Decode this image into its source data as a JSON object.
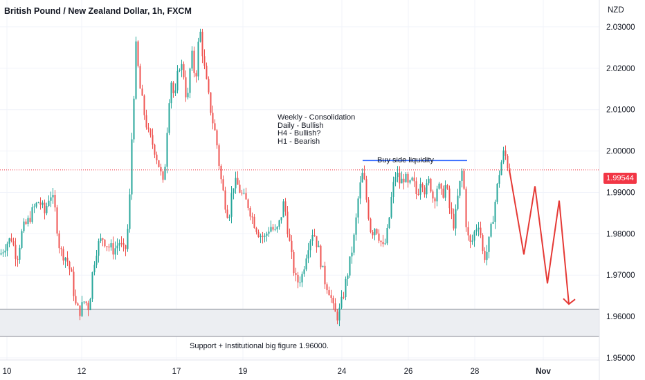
{
  "header": {
    "title": "British Pound / New Zealand Dollar, 1h, FXCM",
    "currency": "NZD"
  },
  "annotations": {
    "bias": [
      "Weekly - Consolidation",
      "Daily - Bullish",
      "H4 - Bullish?",
      "H1 - Bearish"
    ],
    "liquidity_label": "Buy side liquidity",
    "support_label": "Support + Institutional big figure 1.96000."
  },
  "colors": {
    "up": "#26a69a",
    "down": "#ef5350",
    "liquidity_line": "#2962ff",
    "projection": "#e53935",
    "last_price": "#f23645",
    "support_zone": "#eceef2"
  },
  "chart_data": {
    "type": "candlestick",
    "title": "British Pound / New Zealand Dollar, 1h, FXCM",
    "y_axis": {
      "unit": "NZD",
      "ylim": [
        1.9495,
        2.0365
      ],
      "ticks": [
        "2.03000",
        "2.02000",
        "2.01000",
        "2.00000",
        "1.99000",
        "1.98000",
        "1.97000",
        "1.96000",
        "1.95000"
      ],
      "position": "right"
    },
    "x_axis": {
      "ticks": [
        "10",
        "12",
        "17",
        "19",
        "24",
        "26",
        "28",
        "Nov"
      ]
    },
    "grid": true,
    "last_price": {
      "label": "1.99544",
      "value": 1.99544
    },
    "support_zone": {
      "from": 1.9552,
      "to": 1.9618,
      "label": "Support + Institutional big figure 1.96000."
    },
    "buy_side_liquidity": {
      "level": 1.9977,
      "label": "Buy side liquidity"
    },
    "price_path": [
      [
        0,
        1.975
      ],
      [
        8,
        1.9775
      ],
      [
        16,
        1.979
      ],
      [
        24,
        1.974
      ],
      [
        32,
        1.981
      ],
      [
        40,
        1.983
      ],
      [
        48,
        1.986
      ],
      [
        56,
        1.988
      ],
      [
        64,
        1.985
      ],
      [
        72,
        1.99
      ],
      [
        78,
        1.987
      ],
      [
        86,
        1.976
      ],
      [
        96,
        1.974
      ],
      [
        104,
        1.969
      ],
      [
        108,
        1.963
      ],
      [
        114,
        1.961
      ],
      [
        122,
        1.964
      ],
      [
        128,
        1.962
      ],
      [
        134,
        1.972
      ],
      [
        140,
        1.977
      ],
      [
        148,
        1.979
      ],
      [
        156,
        1.977
      ],
      [
        164,
        1.976
      ],
      [
        172,
        1.978
      ],
      [
        180,
        1.975
      ],
      [
        186,
        1.984
      ],
      [
        190,
        2.003
      ],
      [
        196,
        2.025
      ],
      [
        202,
        2.015
      ],
      [
        208,
        2.009
      ],
      [
        214,
        2.004
      ],
      [
        222,
        2.001
      ],
      [
        230,
        1.996
      ],
      [
        236,
        1.991
      ],
      [
        240,
        2.003
      ],
      [
        246,
        2.018
      ],
      [
        252,
        2.012
      ],
      [
        258,
        2.021
      ],
      [
        264,
        2.02
      ],
      [
        270,
        2.011
      ],
      [
        276,
        2.024
      ],
      [
        282,
        2.017
      ],
      [
        288,
        2.03
      ],
      [
        294,
        2.021
      ],
      [
        300,
        2.014
      ],
      [
        306,
        2.008
      ],
      [
        312,
        2.003
      ],
      [
        318,
        1.994
      ],
      [
        324,
        1.988
      ],
      [
        330,
        1.984
      ],
      [
        336,
        1.992
      ],
      [
        342,
        1.992
      ],
      [
        350,
        1.989
      ],
      [
        358,
        1.987
      ],
      [
        366,
        1.983
      ],
      [
        374,
        1.98
      ],
      [
        382,
        1.979
      ],
      [
        390,
        1.982
      ],
      [
        398,
        1.98
      ],
      [
        404,
        1.983
      ],
      [
        410,
        1.988
      ],
      [
        416,
        1.98
      ],
      [
        422,
        1.973
      ],
      [
        428,
        1.968
      ],
      [
        436,
        1.97
      ],
      [
        444,
        1.977
      ],
      [
        452,
        1.981
      ],
      [
        460,
        1.976
      ],
      [
        468,
        1.969
      ],
      [
        476,
        1.966
      ],
      [
        482,
        1.961
      ],
      [
        488,
        1.96
      ],
      [
        494,
        1.964
      ],
      [
        500,
        1.969
      ],
      [
        506,
        1.974
      ],
      [
        512,
        1.98
      ],
      [
        518,
        1.99
      ],
      [
        524,
        1.995
      ],
      [
        530,
        1.987
      ],
      [
        536,
        1.98
      ],
      [
        542,
        1.982
      ],
      [
        548,
        1.979
      ],
      [
        554,
        1.976
      ],
      [
        560,
        1.981
      ],
      [
        566,
        1.99
      ],
      [
        572,
        1.995
      ],
      [
        578,
        1.992
      ],
      [
        584,
        1.994
      ],
      [
        590,
        1.991
      ],
      [
        596,
        1.993
      ],
      [
        602,
        1.989
      ],
      [
        608,
        1.994
      ],
      [
        614,
        1.99
      ],
      [
        620,
        1.993
      ],
      [
        626,
        1.988
      ],
      [
        632,
        1.992
      ],
      [
        638,
        1.989
      ],
      [
        644,
        1.992
      ],
      [
        650,
        1.985
      ],
      [
        656,
        1.982
      ],
      [
        662,
        1.99
      ],
      [
        668,
        1.996
      ],
      [
        674,
        1.98
      ],
      [
        680,
        1.977
      ],
      [
        686,
        1.981
      ],
      [
        692,
        1.983
      ],
      [
        698,
        1.974
      ],
      [
        704,
        1.976
      ],
      [
        710,
        1.982
      ],
      [
        716,
        1.989
      ],
      [
        722,
        1.996
      ],
      [
        728,
        2.0
      ],
      [
        734,
        1.996
      ],
      [
        736,
        1.9954
      ]
    ],
    "projection_path": [
      [
        736,
        1.9954
      ],
      [
        757,
        1.975
      ],
      [
        773,
        1.9915
      ],
      [
        791,
        1.968
      ],
      [
        808,
        1.988
      ],
      [
        822,
        1.963
      ]
    ]
  }
}
